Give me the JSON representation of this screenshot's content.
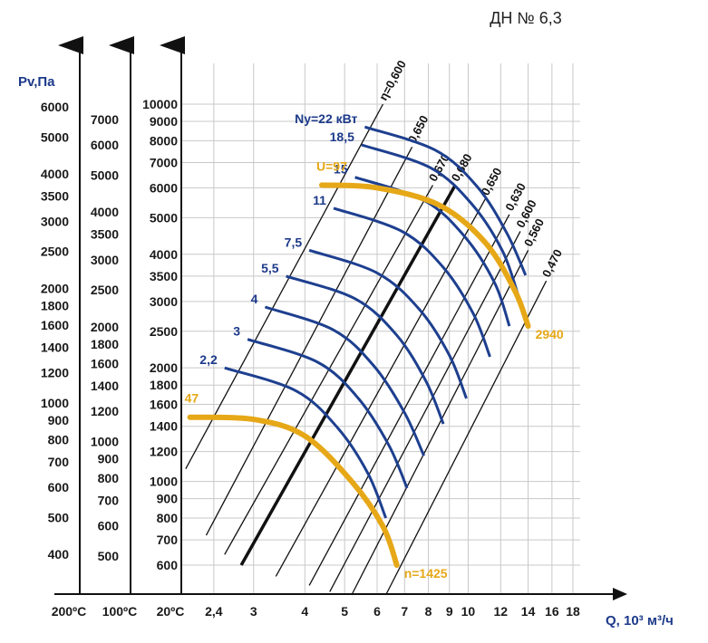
{
  "title": "ДН № 6,3",
  "left_axis_title": "Pv,Па",
  "x_axis_title": "Q, 10³ м³/ч",
  "colors": {
    "power_curve": "#1d3f8f",
    "characteristic": "#e6a817",
    "eta_lines": "#111111",
    "grid": "#c8c8c8"
  },
  "chart_data": {
    "type": "line",
    "title": "ДН № 6,3",
    "xlabel": "Q, 10³ м³/ч",
    "ylabel": "Pv,Па",
    "x_scale": "log",
    "y_scale": "log",
    "xlim": [
      2.0,
      20.0
    ],
    "ylim": [
      320,
      6800
    ],
    "x_ticks": [
      "2,4",
      "3",
      "4",
      "5",
      "6",
      "7",
      "8",
      "9",
      "10",
      "12",
      "14",
      "16",
      "18"
    ],
    "x_tick_values": [
      2.4,
      3,
      4,
      5,
      6,
      7,
      8,
      9,
      10,
      12,
      14,
      16,
      18
    ],
    "temperature_axes": [
      {
        "label": "200ºC",
        "ticks": [
          400,
          500,
          600,
          700,
          800,
          900,
          1000,
          1200,
          1400,
          1600,
          1800,
          2000,
          2500,
          3000,
          3500,
          4000,
          5000,
          6000
        ]
      },
      {
        "label": "100ºC",
        "ticks": [
          500,
          600,
          700,
          800,
          900,
          1000,
          1200,
          1400,
          1600,
          1800,
          2000,
          2500,
          3000,
          3500,
          4000,
          5000,
          6000,
          7000
        ]
      },
      {
        "label": "20ºC",
        "ticks": [
          600,
          700,
          800,
          900,
          1000,
          1200,
          1400,
          1600,
          1800,
          2000,
          2500,
          3000,
          3500,
          4000,
          5000,
          6000,
          7000,
          8000,
          9000,
          10000
        ]
      }
    ],
    "power_curves": [
      {
        "label": "2,2",
        "points": [
          [
            2.55,
            2000
          ],
          [
            3.8,
            1740
          ],
          [
            4.8,
            1390
          ],
          [
            5.7,
            1050
          ],
          [
            6.3,
            800
          ]
        ]
      },
      {
        "label": "3",
        "points": [
          [
            2.9,
            2380
          ],
          [
            4.3,
            2070
          ],
          [
            5.4,
            1660
          ],
          [
            6.4,
            1250
          ],
          [
            7.1,
            960
          ]
        ]
      },
      {
        "label": "4",
        "points": [
          [
            3.2,
            2900
          ],
          [
            4.7,
            2520
          ],
          [
            5.9,
            2020
          ],
          [
            7.0,
            1520
          ],
          [
            7.8,
            1170
          ]
        ]
      },
      {
        "label": "5,5",
        "points": [
          [
            3.6,
            3500
          ],
          [
            5.3,
            3050
          ],
          [
            6.7,
            2440
          ],
          [
            7.9,
            1840
          ],
          [
            8.7,
            1420
          ]
        ]
      },
      {
        "label": "7,5",
        "points": [
          [
            4.1,
            4100
          ],
          [
            6.0,
            3570
          ],
          [
            7.6,
            2860
          ],
          [
            9.0,
            2160
          ],
          [
            9.9,
            1660
          ]
        ]
      },
      {
        "label": "11",
        "points": [
          [
            4.7,
            5300
          ],
          [
            6.9,
            4600
          ],
          [
            8.7,
            3690
          ],
          [
            10.3,
            2780
          ],
          [
            11.3,
            2140
          ]
        ]
      },
      {
        "label": "15",
        "points": [
          [
            5.3,
            6400
          ],
          [
            7.8,
            5560
          ],
          [
            9.8,
            4460
          ],
          [
            11.6,
            3360
          ],
          [
            12.6,
            2580
          ]
        ]
      },
      {
        "label": "18,5",
        "points": [
          [
            5.5,
            7800
          ],
          [
            8.1,
            6780
          ],
          [
            10.2,
            5440
          ],
          [
            12.1,
            4100
          ],
          [
            13.2,
            3150
          ]
        ]
      },
      {
        "label": "Nу=22 кВт",
        "points": [
          [
            5.6,
            8700
          ],
          [
            8.3,
            7560
          ],
          [
            10.5,
            6060
          ],
          [
            12.4,
            4570
          ],
          [
            13.8,
            3520
          ]
        ]
      }
    ],
    "efficiency_lines": [
      {
        "label": "η=0,600",
        "bold": false,
        "points": [
          [
            2.05,
            1080
          ],
          [
            6.2,
            10000
          ]
        ]
      },
      {
        "label": "0,650",
        "bold": false,
        "points": [
          [
            2.3,
            720
          ],
          [
            7.3,
            7700
          ]
        ]
      },
      {
        "label": "0,670",
        "bold": false,
        "points": [
          [
            2.55,
            640
          ],
          [
            8.2,
            6100
          ]
        ]
      },
      {
        "label": "0,680",
        "bold": true,
        "points": [
          [
            2.8,
            600
          ],
          [
            9.3,
            6100
          ]
        ]
      },
      {
        "label": "0,650",
        "bold": false,
        "points": [
          [
            3.4,
            560
          ],
          [
            11.0,
            5600
          ]
        ]
      },
      {
        "label": "0,630",
        "bold": false,
        "points": [
          [
            4.1,
            530
          ],
          [
            12.6,
            5100
          ]
        ]
      },
      {
        "label": "0,600",
        "bold": false,
        "points": [
          [
            4.6,
            510
          ],
          [
            13.4,
            4600
          ]
        ]
      },
      {
        "label": "0,560",
        "bold": false,
        "points": [
          [
            5.2,
            500
          ],
          [
            14.0,
            4100
          ]
        ]
      },
      {
        "label": "0,470",
        "bold": false,
        "points": [
          [
            6.3,
            500
          ],
          [
            15.5,
            3400
          ]
        ]
      }
    ],
    "characteristics": [
      {
        "label_start": "47",
        "label_end": "n=1425",
        "points": [
          [
            2.1,
            1480
          ],
          [
            3.0,
            1460
          ],
          [
            4.0,
            1320
          ],
          [
            5.2,
            1000
          ],
          [
            6.2,
            760
          ],
          [
            6.7,
            600
          ]
        ]
      },
      {
        "label_start": "U=97",
        "label_end": "2940",
        "points": [
          [
            4.4,
            6100
          ],
          [
            6.0,
            6000
          ],
          [
            8.5,
            5400
          ],
          [
            11.0,
            4300
          ],
          [
            13.0,
            3200
          ],
          [
            14.0,
            2580
          ]
        ]
      }
    ]
  }
}
